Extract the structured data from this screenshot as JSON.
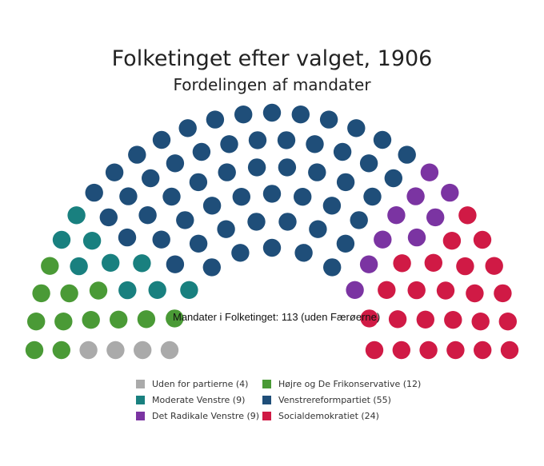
{
  "title": "Folketinget efter valget, 1906",
  "subtitle": "Fordelingen af mandater",
  "center_label": "Mandater i Folketinget: 113 (uden Færøerne)",
  "chart_data": {
    "type": "parliament",
    "total": 113,
    "parties": [
      {
        "name": "Uden for partierne",
        "seats": 4,
        "color": "#aaaaaa",
        "legend": "Uden for partierne (4)"
      },
      {
        "name": "Højre og De Frikonservative",
        "seats": 12,
        "color": "#4a9a36",
        "legend": "Højre og De Frikonservative (12)"
      },
      {
        "name": "Moderate Venstre",
        "seats": 9,
        "color": "#19807f",
        "legend": "Moderate Venstre (9)"
      },
      {
        "name": "Venstrereformpartiet",
        "seats": 55,
        "color": "#1f4e79",
        "legend": "Venstrereformpartiet (55)"
      },
      {
        "name": "Det Radikale Venstre",
        "seats": 9,
        "color": "#7b34a2",
        "legend": "Det Radikale Venstre (9)"
      },
      {
        "name": "Socialdemokratiet",
        "seats": 24,
        "color": "#d01a45",
        "legend": "Socialdemokratiet (24)"
      }
    ],
    "legend_order": [
      "Uden for partierne",
      "Højre og De Frikonservative",
      "Moderate Venstre",
      "Venstrereformpartiet",
      "Det Radikale Venstre",
      "Socialdemokratiet"
    ]
  }
}
